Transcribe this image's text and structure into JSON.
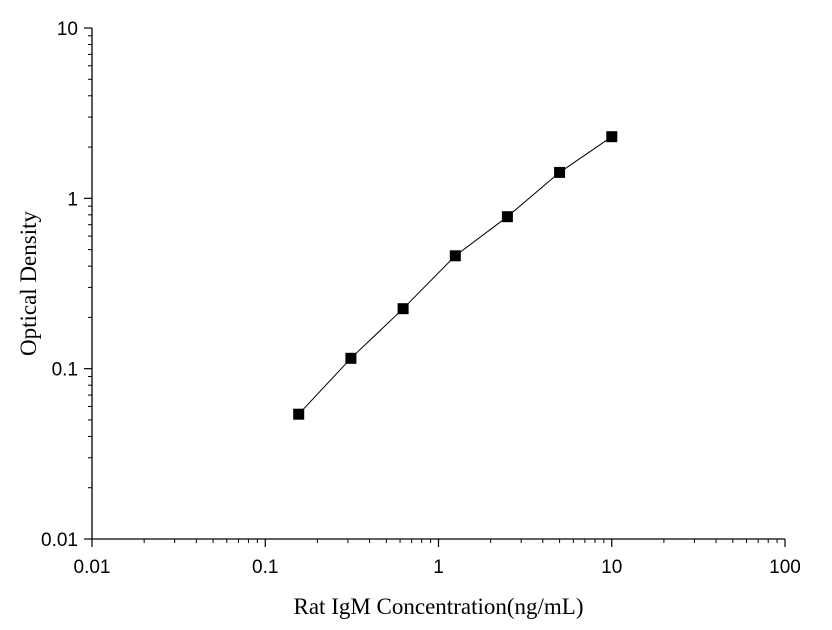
{
  "chart_data": {
    "type": "scatter",
    "title": "",
    "xlabel": "Rat IgM Concentration(ng/mL)",
    "ylabel": "Optical Density",
    "x_scale": "log",
    "y_scale": "log",
    "xlim": [
      0.01,
      100
    ],
    "ylim": [
      0.01,
      10
    ],
    "x_ticks": [
      "0.01",
      "0.1",
      "1",
      "10",
      "100"
    ],
    "y_ticks": [
      "0.01",
      "0.1",
      "1",
      "10"
    ],
    "grid": false,
    "legend": "none",
    "series": [
      {
        "marker": "square",
        "connected": true,
        "color": "#000000",
        "x": [
          0.156,
          0.312,
          0.625,
          1.25,
          2.5,
          5,
          10
        ],
        "y": [
          0.054,
          0.115,
          0.225,
          0.46,
          0.78,
          1.42,
          2.3
        ]
      }
    ]
  }
}
